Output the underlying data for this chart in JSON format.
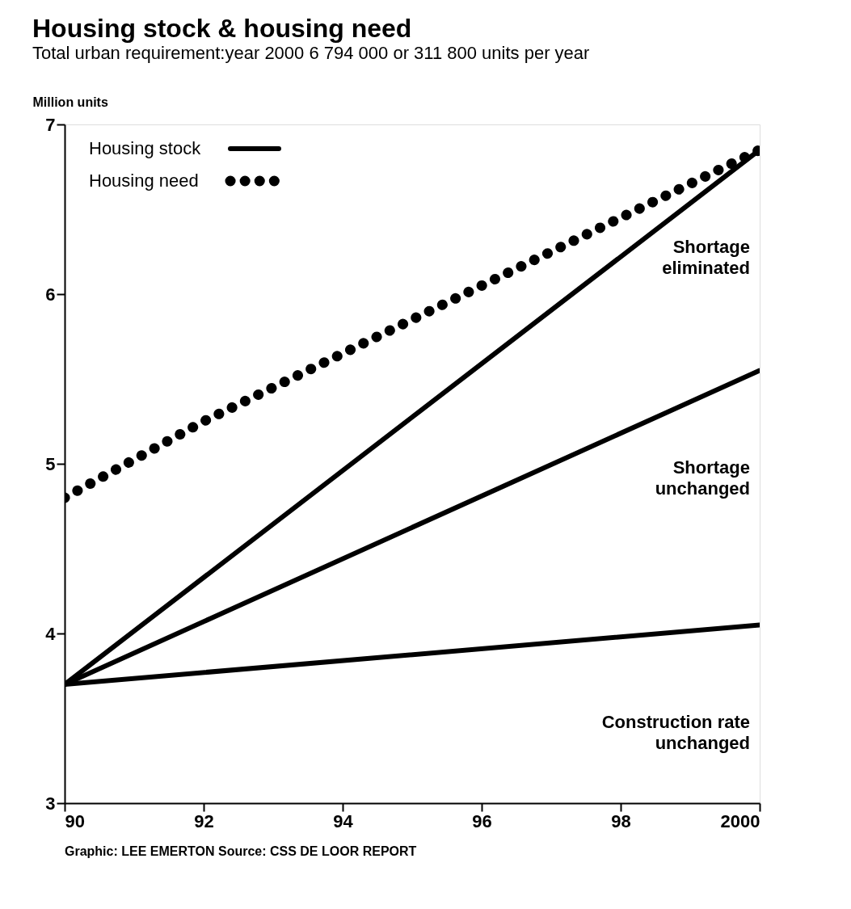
{
  "chart_data": {
    "type": "line",
    "title": "Housing stock & housing need",
    "subtitle": "Total urban requirement:year 2000 6 794 000 or 311 800 units per year",
    "ylabel": "Million units",
    "x": [
      1990,
      1992,
      1994,
      1996,
      1998,
      2000
    ],
    "series": [
      {
        "name": "Housing stock",
        "color": "#000000",
        "line_style": "solid",
        "values": [
          3.7,
          null,
          null,
          null,
          null,
          6.85
        ]
      },
      {
        "color": "#000000",
        "line_style": "solid",
        "values": [
          3.7,
          null,
          null,
          null,
          null,
          5.55
        ]
      },
      {
        "color": "#000000",
        "line_style": "solid",
        "values": [
          3.7,
          null,
          null,
          null,
          null,
          4.05
        ]
      },
      {
        "name": "Housing need",
        "color": "#000000",
        "line_style": "dotted",
        "values": [
          4.8,
          5.25,
          5.65,
          6.05,
          6.45,
          6.85
        ]
      }
    ],
    "xlim": [
      1990,
      2000
    ],
    "xticks": [
      {
        "value": 1990,
        "label": "90"
      },
      {
        "value": 1992,
        "label": "92"
      },
      {
        "value": 1994,
        "label": "94"
      },
      {
        "value": 1996,
        "label": "96"
      },
      {
        "value": 1998,
        "label": "98"
      },
      2000
    ],
    "ylim": [
      3,
      7
    ],
    "yticks": [
      3,
      4,
      5,
      6,
      7
    ],
    "annotations": [
      "Shortage eliminated",
      "Shortage unchanged",
      "Construction rate unchanged",
      "Graphic: LEE EMERTON",
      "Source: CSS DE LOOR REPORT"
    ],
    "legend": "top left",
    "marker": "none",
    "grid": false
  }
}
